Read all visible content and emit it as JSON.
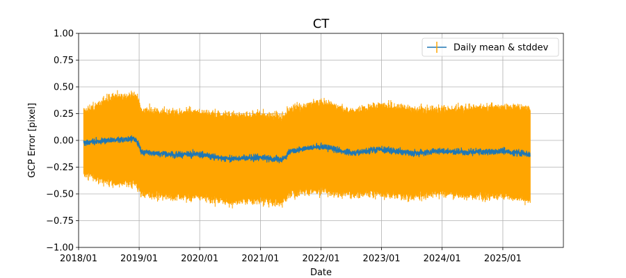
{
  "chart_data": {
    "type": "line",
    "title": "CT",
    "xlabel": "Date",
    "ylabel": "GCP Error [pixel]",
    "x_axis": {
      "kind": "date",
      "range": [
        "2018-01-01",
        "2026-01-01"
      ],
      "tick_dates": [
        "2018-01-01",
        "2019-01-01",
        "2020-01-01",
        "2021-01-01",
        "2022-01-01",
        "2023-01-01",
        "2024-01-01",
        "2025-01-01"
      ],
      "tick_labels": [
        "2018/01",
        "2019/01",
        "2020/01",
        "2021/01",
        "2022/01",
        "2023/01",
        "2024/01",
        "2025/01"
      ]
    },
    "y_axis": {
      "range": [
        -1.0,
        1.0
      ],
      "ticks": [
        -1.0,
        -0.75,
        -0.5,
        -0.25,
        0.0,
        0.25,
        0.5,
        0.75,
        1.0
      ],
      "tick_labels": [
        "−1.00",
        "−0.75",
        "−0.50",
        "−0.25",
        "0.00",
        "0.25",
        "0.50",
        "0.75",
        "1.00"
      ]
    },
    "grid": true,
    "legend": {
      "placement": "top-right",
      "entries": [
        "Daily mean & stddev"
      ]
    },
    "series": [
      {
        "name": "Daily mean & stddev",
        "color": "#1f77b4",
        "errorbar_color": "#ffa500",
        "date_range": [
          "2018-02-01",
          "2025-06-15"
        ],
        "trend_points": [
          {
            "date": "2018-02-15",
            "mean": -0.02,
            "stddev": 0.28
          },
          {
            "date": "2018-07-01",
            "mean": 0.0,
            "stddev": 0.38
          },
          {
            "date": "2018-12-15",
            "mean": 0.01,
            "stddev": 0.4
          },
          {
            "date": "2019-01-15",
            "mean": -0.11,
            "stddev": 0.38
          },
          {
            "date": "2019-07-01",
            "mean": -0.13,
            "stddev": 0.38
          },
          {
            "date": "2020-01-01",
            "mean": -0.13,
            "stddev": 0.38
          },
          {
            "date": "2020-06-01",
            "mean": -0.17,
            "stddev": 0.39
          },
          {
            "date": "2021-01-01",
            "mean": -0.16,
            "stddev": 0.38
          },
          {
            "date": "2021-05-15",
            "mean": -0.18,
            "stddev": 0.39
          },
          {
            "date": "2021-07-01",
            "mean": -0.1,
            "stddev": 0.38
          },
          {
            "date": "2022-01-01",
            "mean": -0.05,
            "stddev": 0.4
          },
          {
            "date": "2022-07-01",
            "mean": -0.12,
            "stddev": 0.37
          },
          {
            "date": "2023-01-01",
            "mean": -0.08,
            "stddev": 0.4
          },
          {
            "date": "2023-07-01",
            "mean": -0.12,
            "stddev": 0.39
          },
          {
            "date": "2024-01-01",
            "mean": -0.1,
            "stddev": 0.38
          },
          {
            "date": "2024-07-01",
            "mean": -0.11,
            "stddev": 0.4
          },
          {
            "date": "2025-01-01",
            "mean": -0.1,
            "stddev": 0.4
          },
          {
            "date": "2025-06-15",
            "mean": -0.13,
            "stddev": 0.42
          }
        ],
        "noise": {
          "mean_jitter": 0.03,
          "stddev_jitter": 0.05
        }
      }
    ]
  }
}
